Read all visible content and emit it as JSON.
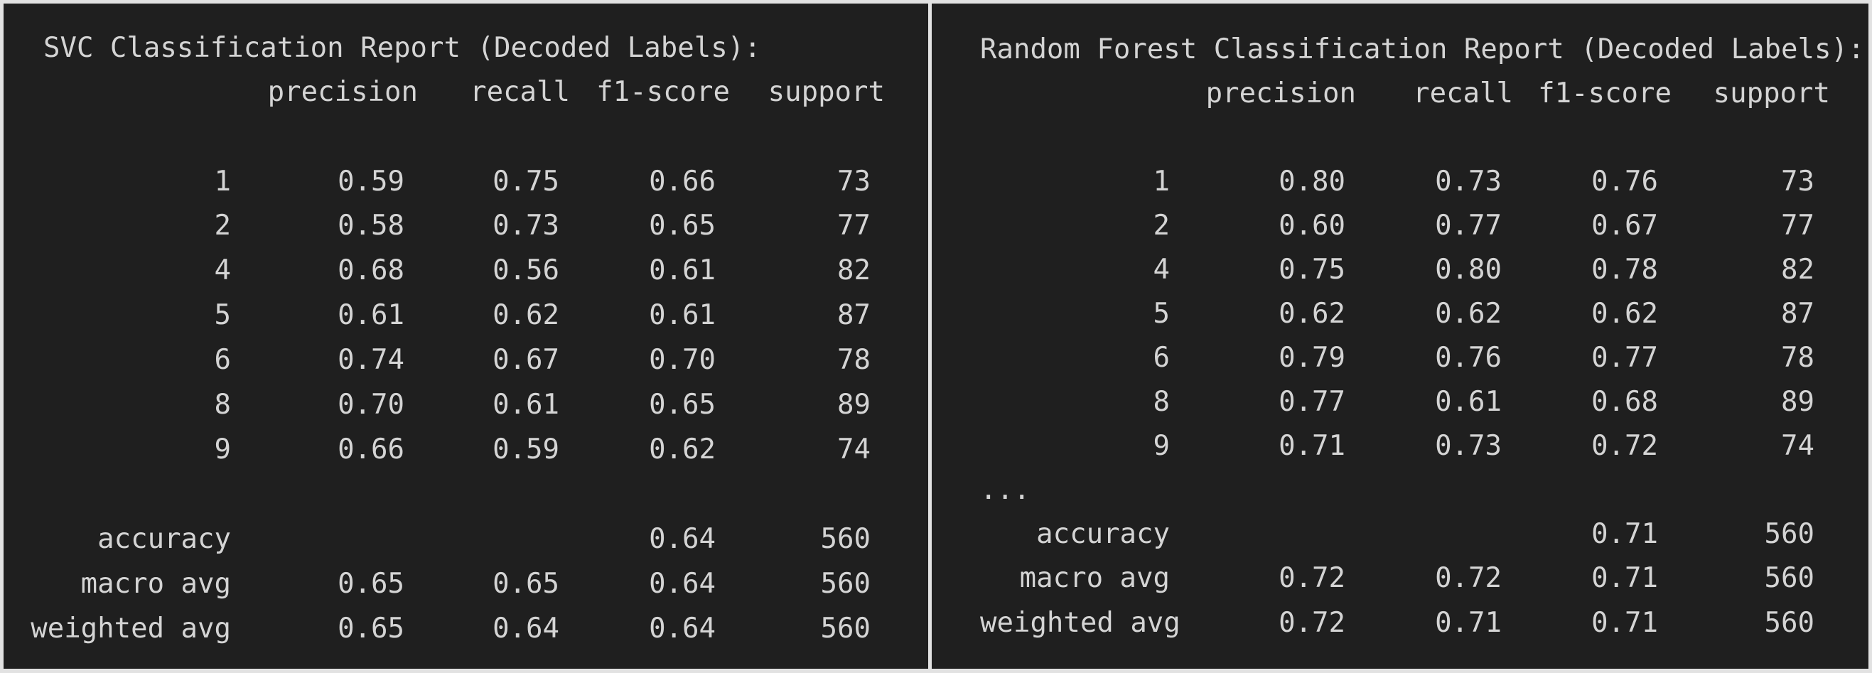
{
  "colors": {
    "background": "#e2e2e2",
    "panel": "#1f1f1f",
    "text": "#d4d4d4"
  },
  "reports": [
    {
      "title": "SVC Classification Report (Decoded Labels):",
      "headers": [
        "precision",
        "recall",
        "f1-score",
        "support"
      ],
      "rows": [
        {
          "label": "1",
          "precision": "0.59",
          "recall": "0.75",
          "f1": "0.66",
          "support": "73"
        },
        {
          "label": "2",
          "precision": "0.58",
          "recall": "0.73",
          "f1": "0.65",
          "support": "77"
        },
        {
          "label": "4",
          "precision": "0.68",
          "recall": "0.56",
          "f1": "0.61",
          "support": "82"
        },
        {
          "label": "5",
          "precision": "0.61",
          "recall": "0.62",
          "f1": "0.61",
          "support": "87"
        },
        {
          "label": "6",
          "precision": "0.74",
          "recall": "0.67",
          "f1": "0.70",
          "support": "78"
        },
        {
          "label": "8",
          "precision": "0.70",
          "recall": "0.61",
          "f1": "0.65",
          "support": "89"
        },
        {
          "label": "9",
          "precision": "0.66",
          "recall": "0.59",
          "f1": "0.62",
          "support": "74"
        }
      ],
      "ellipsis": "",
      "summary": [
        {
          "label": "accuracy",
          "precision": "",
          "recall": "",
          "f1": "0.64",
          "support": "560"
        },
        {
          "label": "macro avg",
          "precision": "0.65",
          "recall": "0.65",
          "f1": "0.64",
          "support": "560"
        },
        {
          "label": "weighted avg",
          "precision": "0.65",
          "recall": "0.64",
          "f1": "0.64",
          "support": "560"
        }
      ]
    },
    {
      "title": "Random Forest Classification Report (Decoded Labels):",
      "headers": [
        "precision",
        "recall",
        "f1-score",
        "support"
      ],
      "rows": [
        {
          "label": "1",
          "precision": "0.80",
          "recall": "0.73",
          "f1": "0.76",
          "support": "73"
        },
        {
          "label": "2",
          "precision": "0.60",
          "recall": "0.77",
          "f1": "0.67",
          "support": "77"
        },
        {
          "label": "4",
          "precision": "0.75",
          "recall": "0.80",
          "f1": "0.78",
          "support": "82"
        },
        {
          "label": "5",
          "precision": "0.62",
          "recall": "0.62",
          "f1": "0.62",
          "support": "87"
        },
        {
          "label": "6",
          "precision": "0.79",
          "recall": "0.76",
          "f1": "0.77",
          "support": "78"
        },
        {
          "label": "8",
          "precision": "0.77",
          "recall": "0.61",
          "f1": "0.68",
          "support": "89"
        },
        {
          "label": "9",
          "precision": "0.71",
          "recall": "0.73",
          "f1": "0.72",
          "support": "74"
        }
      ],
      "ellipsis": "...",
      "summary": [
        {
          "label": "accuracy",
          "precision": "",
          "recall": "",
          "f1": "0.71",
          "support": "560"
        },
        {
          "label": "macro avg",
          "precision": "0.72",
          "recall": "0.72",
          "f1": "0.71",
          "support": "560"
        },
        {
          "label": "weighted avg",
          "precision": "0.72",
          "recall": "0.71",
          "f1": "0.71",
          "support": "560"
        }
      ]
    }
  ]
}
